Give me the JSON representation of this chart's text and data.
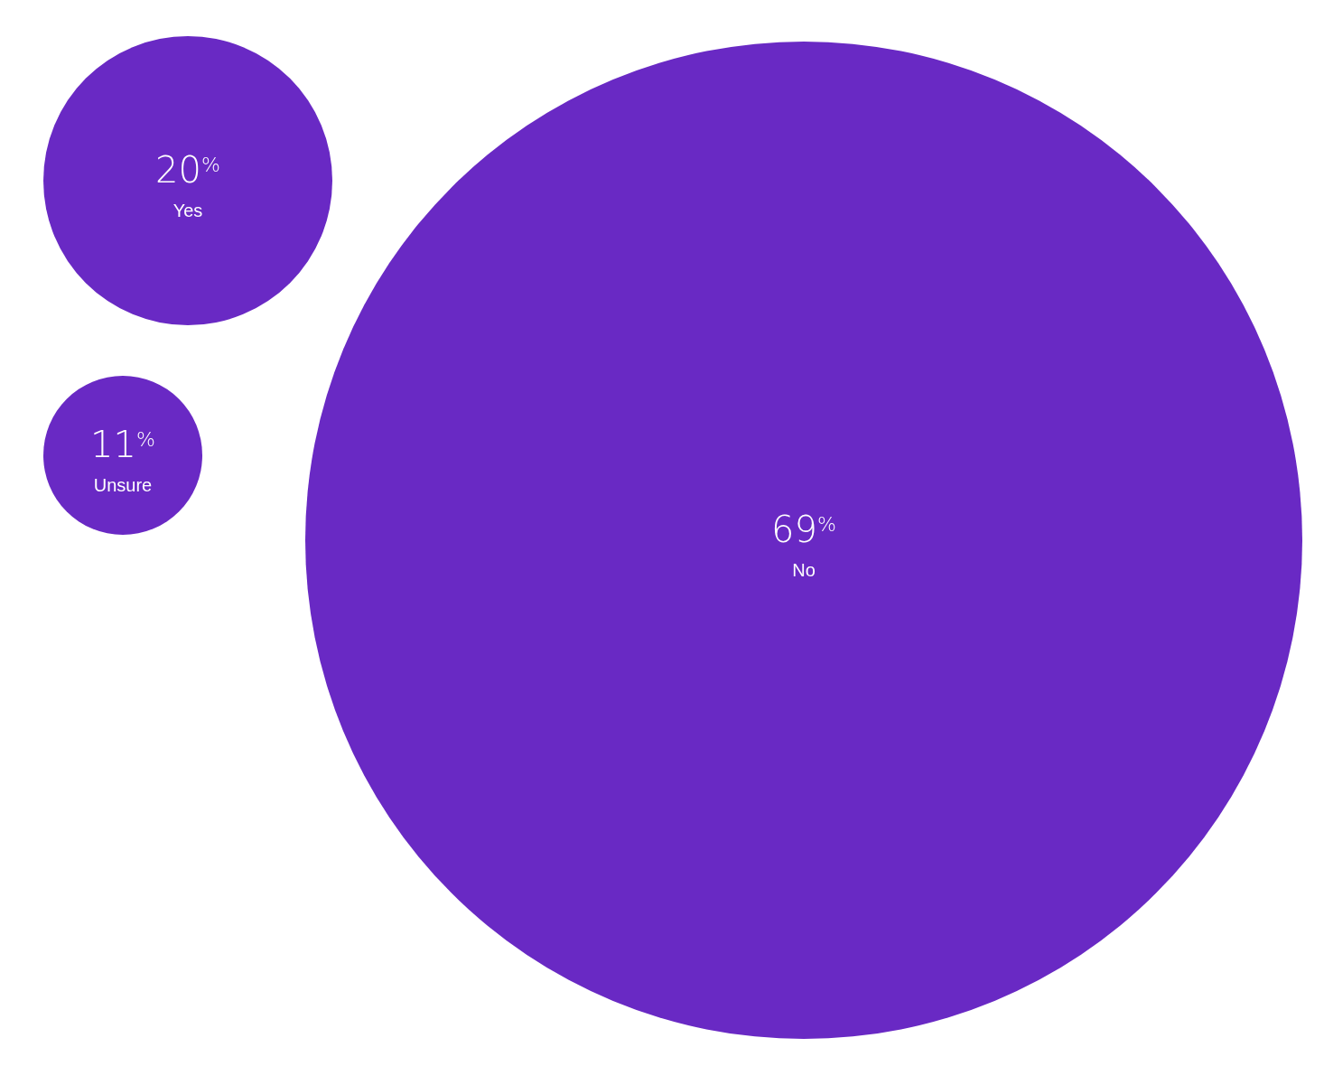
{
  "chart_data": {
    "type": "other",
    "categories": [
      "Yes",
      "Unsure",
      "No"
    ],
    "values": [
      20,
      11,
      69
    ],
    "value_labels": [
      "20$^{%}$",
      "11$^{%}$",
      "69$^{%}$"
    ],
    "color": "#6929c4"
  }
}
